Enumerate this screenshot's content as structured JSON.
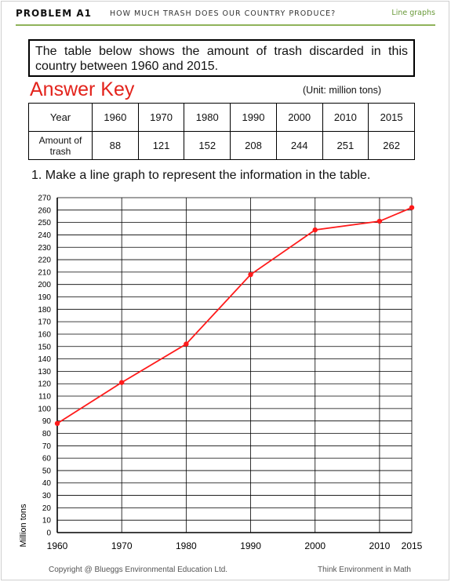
{
  "header": {
    "problem_number": "PROBLEM A1",
    "title": "HOW MUCH TRASH DOES OUR COUNTRY PRODUCE?",
    "category": "Line graphs"
  },
  "intro_text": "The table below shows the amount of trash discarded in this country between 1960 and 2015.",
  "answer_key_label": "Answer Key",
  "unit_label": "(Unit: million tons)",
  "table": {
    "row_headers": [
      "Year",
      "Amount of trash"
    ],
    "years": [
      "1960",
      "1970",
      "1980",
      "1990",
      "2000",
      "2010",
      "2015"
    ],
    "amounts": [
      "88",
      "121",
      "152",
      "208",
      "244",
      "251",
      "262"
    ]
  },
  "question": "1. Make a line graph to represent the information in the table.",
  "chart_data": {
    "type": "line",
    "x": [
      1960,
      1970,
      1980,
      1990,
      2000,
      2010,
      2015
    ],
    "y": [
      88,
      121,
      152,
      208,
      244,
      251,
      262
    ],
    "xlabel": "",
    "ylabel": "Million tons",
    "xlim": [
      1960,
      2015
    ],
    "ylim": [
      0,
      270
    ],
    "x_ticks": [
      1960,
      1970,
      1980,
      1990,
      2000,
      2010,
      2015
    ],
    "y_tick_step": 10,
    "grid": true,
    "line_color": "#ff1a1a"
  },
  "footer": {
    "copyright": "Copyright @ Blueggs Environmental Education Ltd.",
    "tagline": "Think Environment in Math"
  }
}
